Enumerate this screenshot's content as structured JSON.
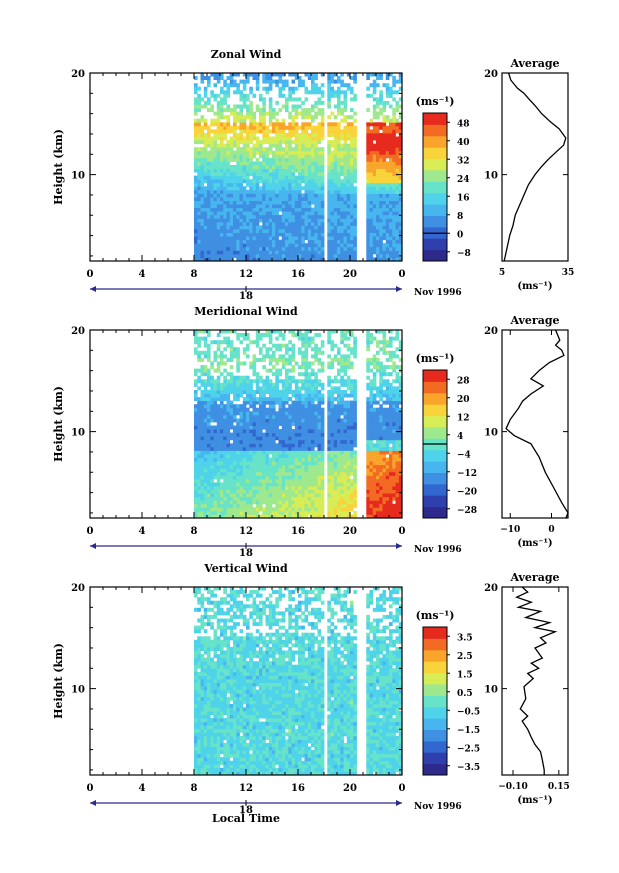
{
  "figure": {
    "xlabel": "Local Time",
    "date_label": "Nov 1996",
    "day_label": "18",
    "height_label": "Height (km)",
    "unit_label": "(ms⁻¹)",
    "x_ticks": [
      "0",
      "4",
      "8",
      "12",
      "16",
      "20",
      "0"
    ],
    "y_ticks": [
      "20",
      "10"
    ]
  },
  "palette": [
    "#2e2a8c",
    "#2f3fae",
    "#3267d0",
    "#3f8fe2",
    "#48b6ee",
    "#4fd3ea",
    "#66e3c8",
    "#9ee88e",
    "#d8ec55",
    "#f8d43a",
    "#f9a52c",
    "#f36b23",
    "#e62b1e"
  ],
  "chart_data": [
    {
      "type": "heatmap",
      "title": "Zonal Wind",
      "xlim": [
        0,
        24
      ],
      "ylim": [
        1.5,
        20
      ],
      "y_ticks": [
        10,
        20
      ],
      "data_start_hour": 8,
      "data_gaps_hours": [
        [
          17.8,
          18.1
        ],
        [
          20.4,
          21.2
        ]
      ],
      "colorbar_ticks": [
        48,
        40,
        32,
        24,
        16,
        8,
        0,
        -8
      ],
      "colorbar_range": [
        -12,
        52
      ],
      "zero_contour": 0,
      "profile": {
        "title": "Average",
        "xlim": [
          5,
          35
        ],
        "x_ticks": [
          5,
          35
        ],
        "points": [
          [
            8,
            20
          ],
          [
            9,
            19.3
          ],
          [
            12,
            18.5
          ],
          [
            15,
            18
          ],
          [
            17,
            17.5
          ],
          [
            20,
            16.8
          ],
          [
            23,
            16
          ],
          [
            27,
            15.2
          ],
          [
            31,
            14.5
          ],
          [
            34,
            13.6
          ],
          [
            33,
            12.9
          ],
          [
            30,
            12.3
          ],
          [
            26,
            11.5
          ],
          [
            23,
            10.8
          ],
          [
            20,
            10
          ],
          [
            17,
            9
          ],
          [
            15,
            8
          ],
          [
            13,
            7
          ],
          [
            11,
            6
          ],
          [
            10,
            5
          ],
          [
            8.5,
            4
          ],
          [
            7.5,
            3
          ],
          [
            6.5,
            2
          ],
          [
            6,
            1.5
          ]
        ]
      }
    },
    {
      "type": "heatmap",
      "title": "Meridional Wind",
      "xlim": [
        0,
        24
      ],
      "ylim": [
        1.5,
        20
      ],
      "y_ticks": [
        10,
        20
      ],
      "data_start_hour": 8,
      "data_gaps_hours": [
        [
          17.8,
          18.1
        ],
        [
          20.4,
          21.2
        ]
      ],
      "colorbar_ticks": [
        28,
        20,
        12,
        4,
        -4,
        -12,
        -20,
        -28
      ],
      "colorbar_range": [
        -32,
        32
      ],
      "zero_contour": 0,
      "profile": {
        "title": "Average",
        "xlim": [
          -12,
          4
        ],
        "x_ticks": [
          -10,
          0
        ],
        "points": [
          [
            1,
            20
          ],
          [
            2,
            19
          ],
          [
            1,
            18.5
          ],
          [
            2.5,
            18
          ],
          [
            3,
            17.5
          ],
          [
            -0.5,
            16.8
          ],
          [
            -3,
            16
          ],
          [
            -5,
            15.2
          ],
          [
            -2,
            14.5
          ],
          [
            -5,
            13.7
          ],
          [
            -7,
            13
          ],
          [
            -8,
            12.3
          ],
          [
            -10,
            11.2
          ],
          [
            -11,
            10.3
          ],
          [
            -9,
            9.6
          ],
          [
            -5,
            8.8
          ],
          [
            -3,
            7.5
          ],
          [
            -1.5,
            6
          ],
          [
            0.5,
            4.5
          ],
          [
            2.5,
            3
          ],
          [
            4,
            2
          ],
          [
            3.5,
            1.5
          ]
        ]
      }
    },
    {
      "type": "heatmap",
      "title": "Vertical Wind",
      "xlim": [
        0,
        24
      ],
      "ylim": [
        1.5,
        20
      ],
      "y_ticks": [
        10,
        20
      ],
      "data_start_hour": 8,
      "data_gaps_hours": [
        [
          17.8,
          18.1
        ],
        [
          20.4,
          21.2
        ]
      ],
      "colorbar_ticks": [
        3.5,
        2.5,
        1.5,
        0.5,
        -0.5,
        -1.5,
        -2.5,
        -3.5
      ],
      "colorbar_range": [
        -4,
        4
      ],
      "zero_contour": null,
      "profile": {
        "title": "Average",
        "xlim": [
          -0.16,
          0.2
        ],
        "x_ticks": [
          -0.1,
          0.15
        ],
        "x_tick_labels": [
          "−0.10",
          "0.15"
        ],
        "points": [
          [
            -0.05,
            20
          ],
          [
            -0.02,
            19.5
          ],
          [
            -0.08,
            19
          ],
          [
            0,
            18.5
          ],
          [
            -0.07,
            18
          ],
          [
            0.05,
            17.6
          ],
          [
            -0.03,
            17
          ],
          [
            0.1,
            16.5
          ],
          [
            0.02,
            16
          ],
          [
            0.13,
            15.6
          ],
          [
            0.05,
            15
          ],
          [
            0.08,
            14.5
          ],
          [
            0.02,
            14
          ],
          [
            0.06,
            13
          ],
          [
            0,
            12.5
          ],
          [
            0.04,
            12
          ],
          [
            -0.02,
            11.5
          ],
          [
            0.01,
            11
          ],
          [
            -0.04,
            10.2
          ],
          [
            -0.03,
            9
          ],
          [
            -0.06,
            8
          ],
          [
            -0.02,
            7.3
          ],
          [
            -0.05,
            6.8
          ],
          [
            -0.02,
            6
          ],
          [
            0.0,
            5.2
          ],
          [
            0.02,
            4.5
          ],
          [
            0.05,
            3.8
          ],
          [
            0.06,
            3
          ],
          [
            0.07,
            2
          ],
          [
            0.07,
            1.5
          ]
        ]
      }
    }
  ]
}
